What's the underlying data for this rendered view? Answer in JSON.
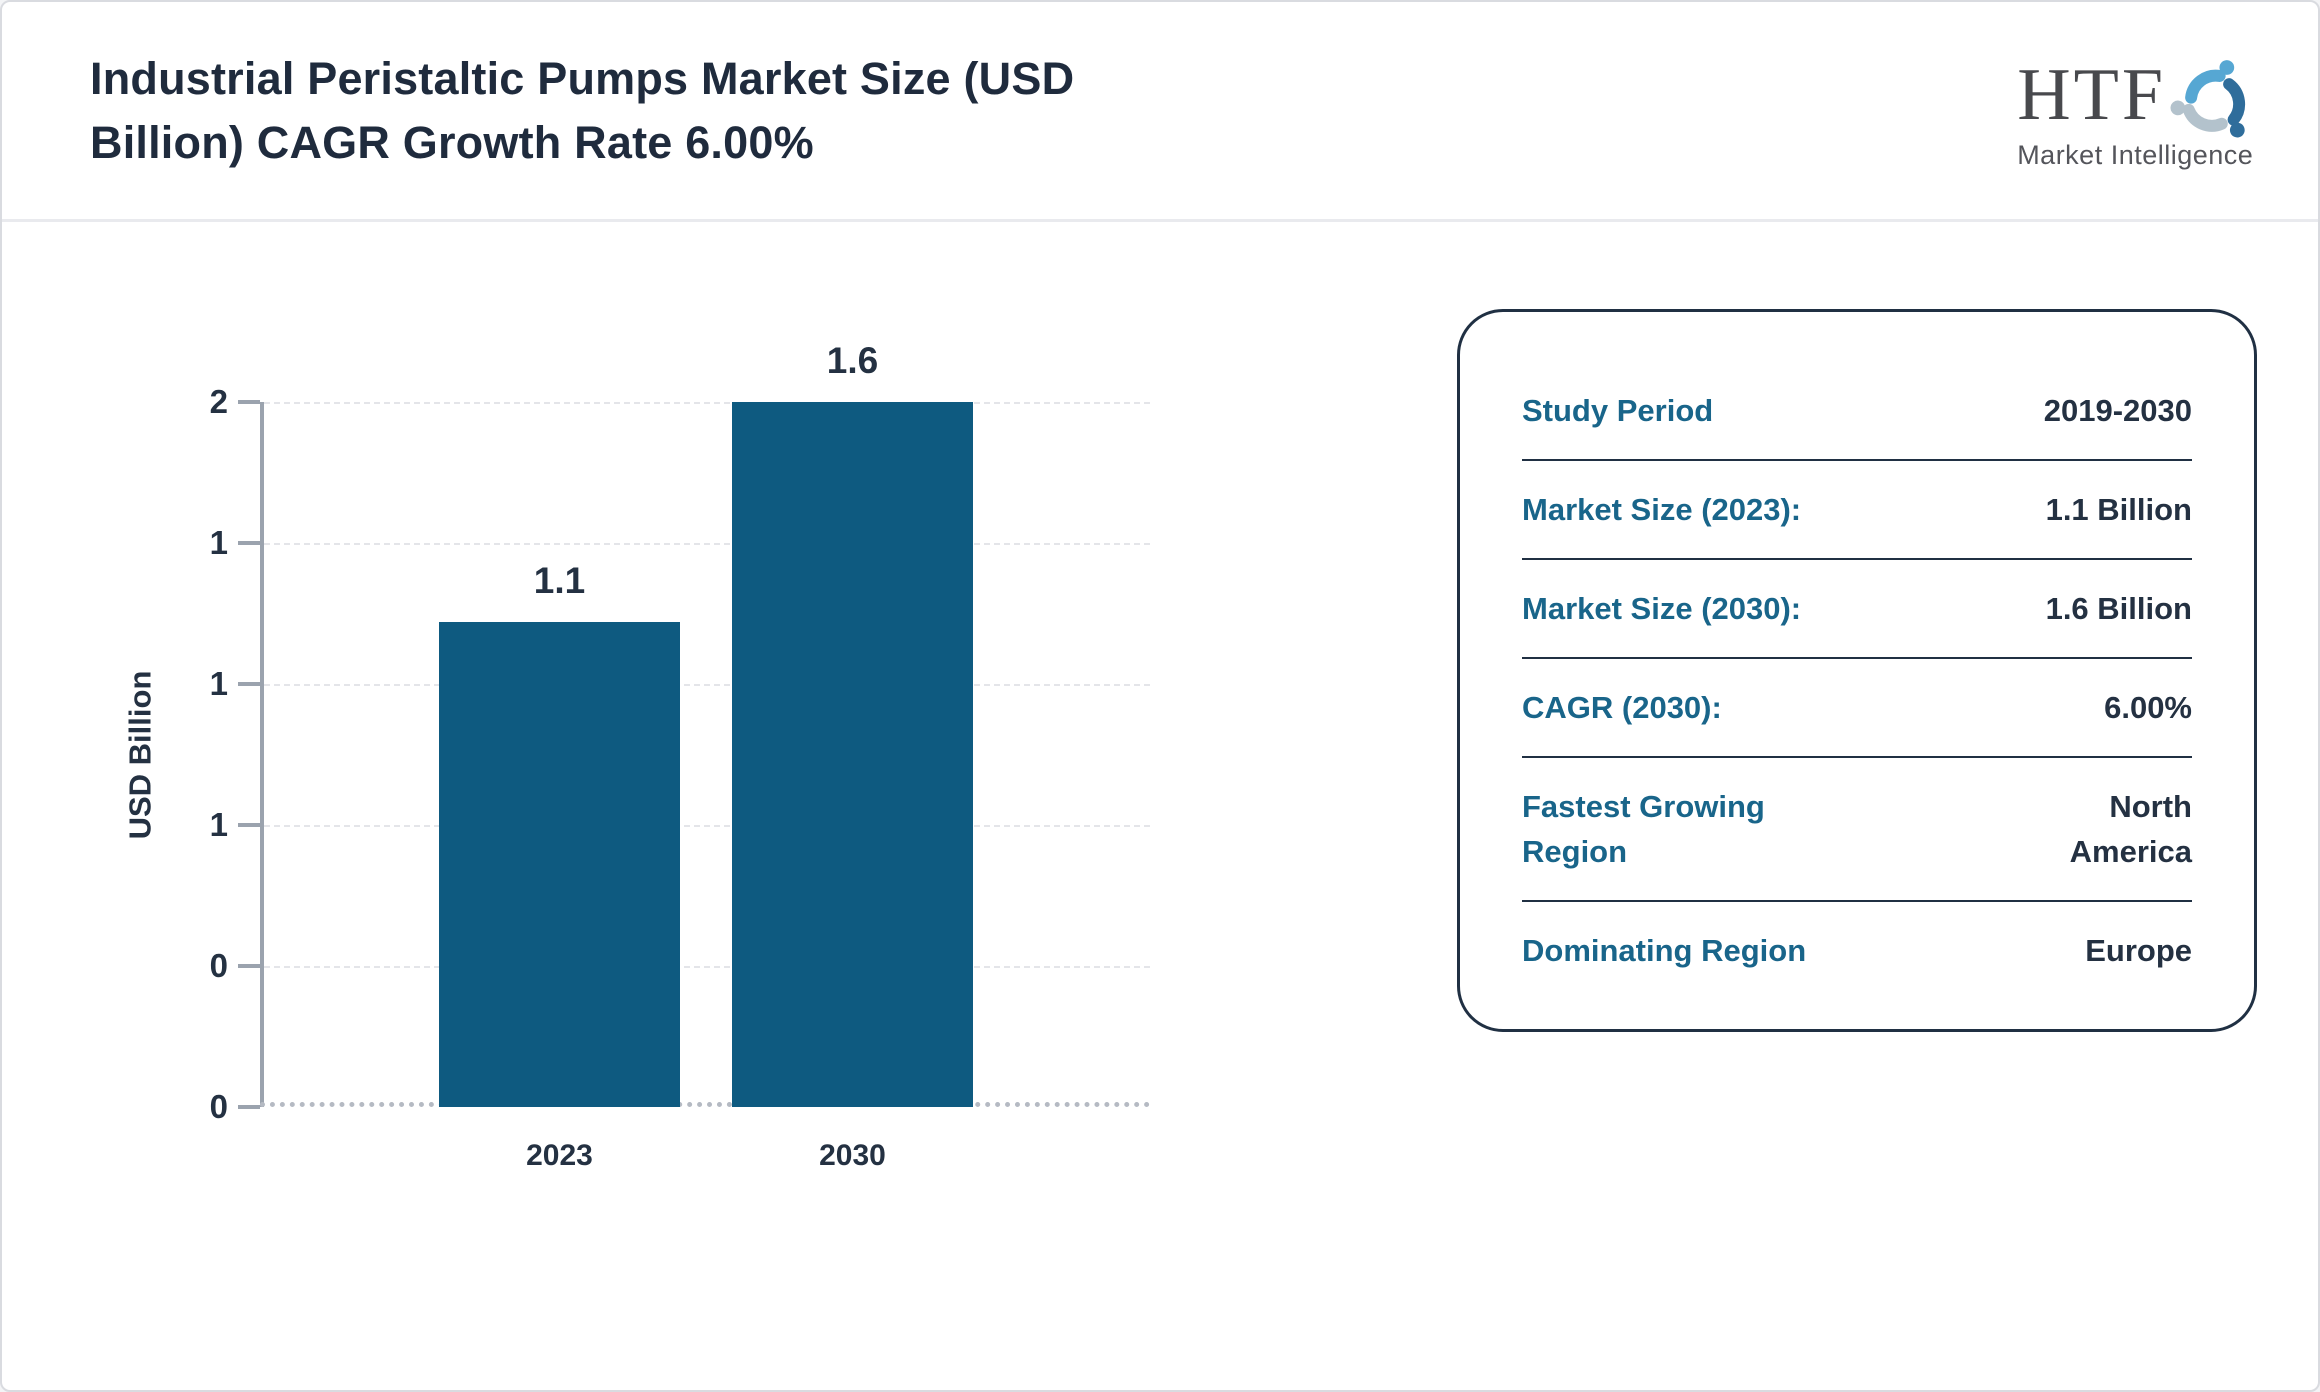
{
  "page": {
    "background": "#ffffff",
    "border_color": "#d9dbe0"
  },
  "header": {
    "title_line1": "Industrial Peristaltic Pumps Market Size (USD",
    "title_line2": "Billion) CAGR Growth Rate 6.00%",
    "logo": {
      "wordmark": "HTF",
      "subtitle": "Market Intelligence",
      "icon": "people-swirl-icon"
    }
  },
  "chart_data": {
    "type": "bar",
    "title": "",
    "xlabel": "",
    "ylabel": "USD Billion",
    "categories": [
      "2023",
      "2030"
    ],
    "values": [
      1.1,
      1.6
    ],
    "bar_labels": [
      "1.1",
      "1.6"
    ],
    "ylim": [
      0,
      1.6
    ],
    "y_ticks_top_to_bottom": [
      "2",
      "1",
      "1",
      "1",
      "0",
      "0"
    ],
    "grid": true,
    "legend_position": "none",
    "bar_color": "#0e5a80"
  },
  "card": {
    "rows": [
      {
        "label": "Study Period",
        "value": "2019-2030"
      },
      {
        "label": "Market Size (2023):",
        "value": "1.1 Billion"
      },
      {
        "label": "Market Size (2030):",
        "value": "1.6 Billion"
      },
      {
        "label": "CAGR (2030):",
        "value": "6.00%"
      },
      {
        "label": "Fastest Growing Region",
        "value": "North America"
      },
      {
        "label": "Dominating Region",
        "value": "Europe"
      }
    ]
  },
  "colors": {
    "accent_label": "#19658a",
    "text_dark": "#243142",
    "bar": "#0e5a80",
    "logo_blue_light": "#56a7d3",
    "logo_blue_dark": "#2f6d9b",
    "logo_gray_blue": "#b3c2cc"
  }
}
